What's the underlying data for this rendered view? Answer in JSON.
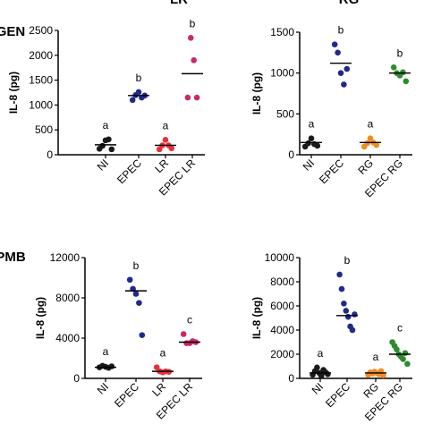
{
  "chart_data": [
    {
      "type": "scatter",
      "title": "LR",
      "row_label": "GEN",
      "ylabel": "IL-8 (pg)",
      "ylim": [
        0,
        2500
      ],
      "yticks": [
        0,
        500,
        1000,
        1500,
        2000,
        2500
      ],
      "categories": [
        "NI",
        "EPEC",
        "LR",
        "EPEC LR"
      ],
      "colors": [
        "#1a1a1a",
        "#1f2a8a",
        "#e8303a",
        "#c9296b"
      ],
      "letters": [
        "a",
        "b",
        "a",
        "b"
      ],
      "means": [
        200,
        1190,
        190,
        1630
      ],
      "points": [
        [
          120,
          180,
          290,
          310,
          110
        ],
        [
          1100,
          1200,
          1260,
          1150,
          1190
        ],
        [
          110,
          190,
          300,
          190,
          130
        ],
        [
          1150,
          2350,
          1900,
          1150
        ]
      ]
    },
    {
      "type": "scatter",
      "title": "RG",
      "ylabel": "IL-8 (pg)",
      "ylim": [
        0,
        1500
      ],
      "yticks": [
        0,
        500,
        1000,
        1500
      ],
      "categories": [
        "NI",
        "EPEC",
        "RG",
        "EPEC RG"
      ],
      "colors": [
        "#1a1a1a",
        "#1f2a8a",
        "#f08a24",
        "#2e8b2e"
      ],
      "letters": [
        "a",
        "b",
        "a",
        "b"
      ],
      "means": [
        150,
        1120,
        150,
        1000
      ],
      "points": [
        [
          100,
          140,
          200,
          130,
          110
        ],
        [
          1350,
          1250,
          1000,
          860,
          1050
        ],
        [
          100,
          140,
          200,
          150,
          120
        ],
        [
          1070,
          1000,
          970,
          1010,
          900
        ]
      ]
    },
    {
      "type": "scatter",
      "row_label": "PMB",
      "ylabel": "IL-8 (pg)",
      "ylim": [
        0,
        12000
      ],
      "yticks": [
        0,
        4000,
        8000,
        12000
      ],
      "categories": [
        "NI",
        "EPEC",
        "LR",
        "EPEC LR"
      ],
      "colors": [
        "#1a1a1a",
        "#1f2a8a",
        "#e8303a",
        "#c9296b"
      ],
      "letters": [
        "a",
        "b",
        "a",
        "c"
      ],
      "means": [
        1100,
        8700,
        700,
        3600
      ],
      "points": [
        [
          1100,
          1250,
          1150,
          1050,
          1200
        ],
        [
          9800,
          8900,
          8400,
          7500,
          4300
        ],
        [
          1100,
          700,
          600,
          700,
          650
        ],
        [
          4400,
          3500,
          3500,
          3700,
          3600
        ]
      ]
    },
    {
      "type": "scatter",
      "ylabel": "IL-8 (pg)",
      "ylim": [
        0,
        10000
      ],
      "yticks": [
        0,
        2000,
        4000,
        6000,
        8000,
        10000
      ],
      "categories": [
        "NI",
        "EPEC",
        "RG",
        "EPEC RG"
      ],
      "colors": [
        "#1a1a1a",
        "#1f2a8a",
        "#f08a24",
        "#2e8b2e"
      ],
      "letters": [
        "a",
        "b",
        "a",
        "c"
      ],
      "means": [
        450,
        5200,
        450,
        2000
      ],
      "points": [
        [
          300,
          600,
          900,
          450,
          200,
          700,
          500,
          350
        ],
        [
          8600,
          7400,
          6200,
          5600,
          5100,
          4300,
          4000,
          5300
        ],
        [
          300,
          500,
          400,
          550,
          450,
          350,
          600,
          250
        ],
        [
          3000,
          2700,
          2400,
          2000,
          1800,
          1600,
          2100,
          1200
        ]
      ]
    }
  ]
}
